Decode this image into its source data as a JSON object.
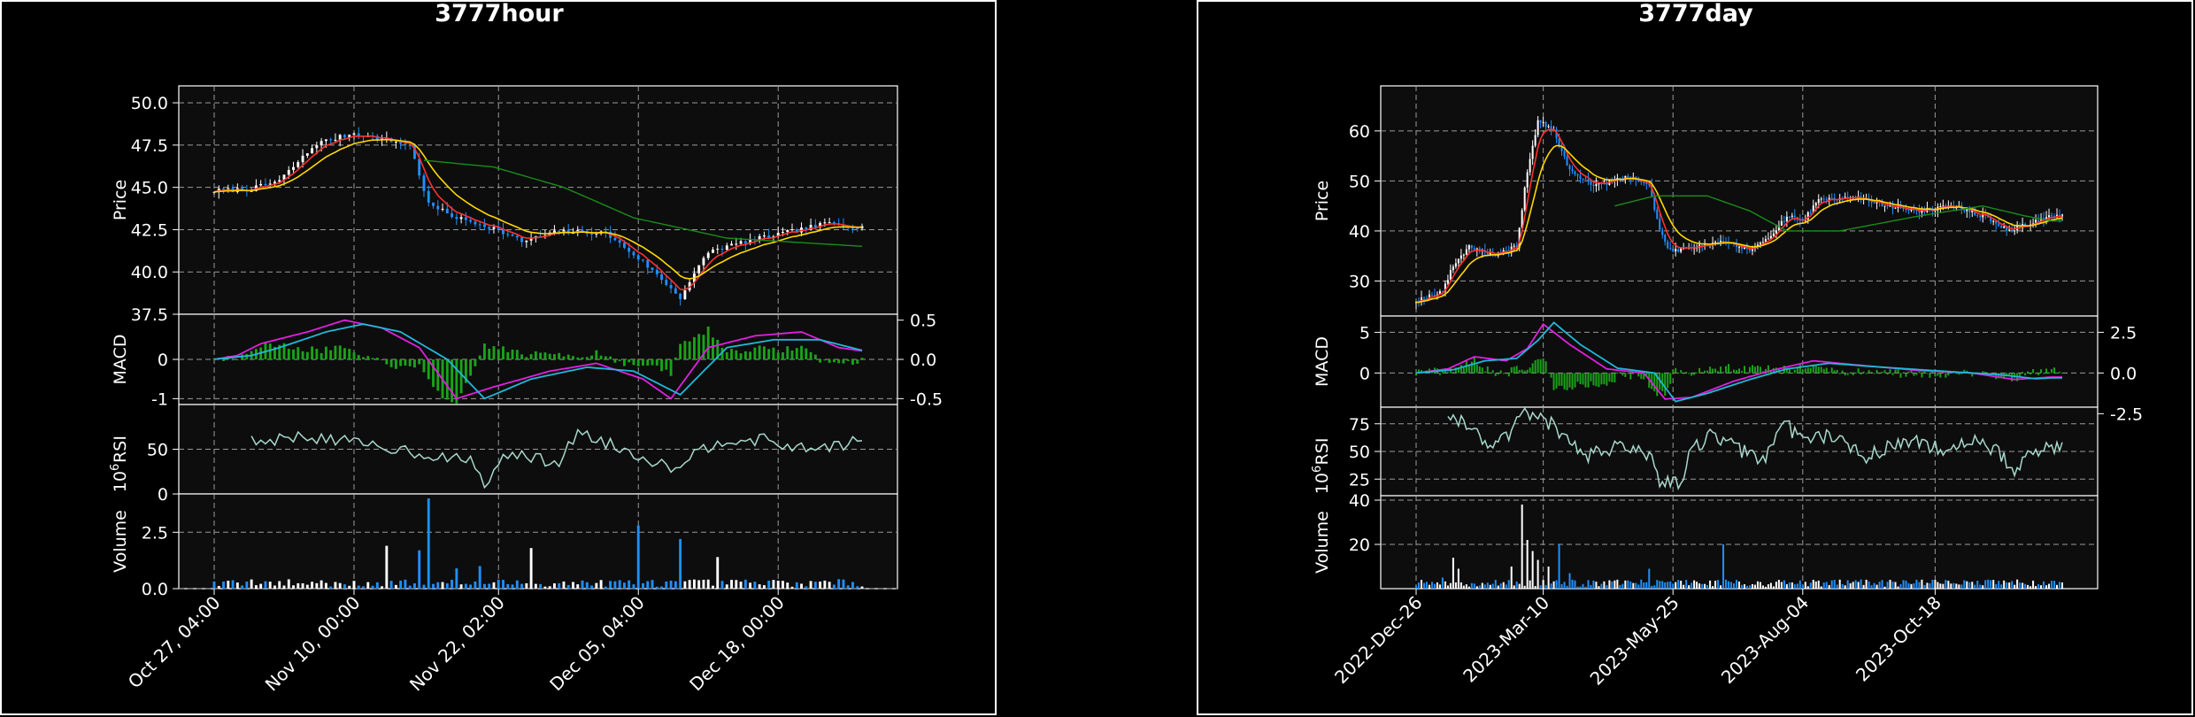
{
  "colors": {
    "background": "#000000",
    "plot_face": "#0d0d0d",
    "grid": "#9a9a9a",
    "axis": "#ffffff",
    "text": "#ffffff",
    "candle_up": "#ffffff",
    "candle_down": "#1e90ff",
    "ma_fast": "#ff3030",
    "ma_mid": "#ffd700",
    "ma_slow": "#1a8c1a",
    "macd_line": "#e020e0",
    "signal_line": "#20b8d8",
    "macd_hist": "#1aa31a",
    "rsi_line": "#a8d8cc"
  },
  "chart_data": [
    {
      "type": "candlestick",
      "title": "3777hour",
      "x_tick_labels": [
        "Oct 27, 04:00",
        "Nov 10, 00:00",
        "Nov 22, 02:00",
        "Dec 05, 04:00",
        "Dec 18, 00:00"
      ],
      "bar_count": 140,
      "x_tick_index": [
        0,
        30,
        61,
        91,
        121
      ],
      "price_panel": {
        "ylabel": "Price",
        "ylim": [
          37.5,
          51
        ],
        "yticks": [
          "37.5",
          "40.0",
          "42.5",
          "45.0",
          "47.5",
          "50.0"
        ],
        "ytick_values": [
          37.5,
          40,
          42.5,
          45,
          47.5,
          50
        ],
        "close_keypoints": [
          [
            0,
            44.8
          ],
          [
            8,
            44.9
          ],
          [
            14,
            45.4
          ],
          [
            22,
            47.6
          ],
          [
            30,
            48.2
          ],
          [
            42,
            47.5
          ],
          [
            46,
            44.0
          ],
          [
            52,
            43.2
          ],
          [
            60,
            42.6
          ],
          [
            66,
            41.8
          ],
          [
            74,
            42.4
          ],
          [
            84,
            42.3
          ],
          [
            92,
            40.6
          ],
          [
            100,
            38.5
          ],
          [
            106,
            41.2
          ],
          [
            114,
            41.8
          ],
          [
            124,
            42.4
          ],
          [
            132,
            42.9
          ],
          [
            140,
            42.6
          ]
        ],
        "ma_slow_keypoints": [
          [
            45,
            46.6
          ],
          [
            60,
            46.2
          ],
          [
            75,
            45.0
          ],
          [
            90,
            43.2
          ],
          [
            110,
            42.0
          ],
          [
            140,
            41.5
          ]
        ]
      },
      "macd_panel": {
        "ylabel": "MACD",
        "left_ylim": [
          -1.15,
          1.15
        ],
        "left_yticks": [
          "-1",
          "0"
        ],
        "left_ytick_values": [
          -1,
          0
        ],
        "right_yticks": [
          "0.5",
          "0.0",
          "-0.5"
        ],
        "right_ytick_values": [
          0.5,
          0,
          -0.5
        ],
        "macd_keypoints": [
          [
            0,
            0.0
          ],
          [
            5,
            0.1
          ],
          [
            10,
            0.4
          ],
          [
            20,
            0.7
          ],
          [
            28,
            1.0
          ],
          [
            36,
            0.8
          ],
          [
            44,
            0.3
          ],
          [
            52,
            -1.0
          ],
          [
            60,
            -0.7
          ],
          [
            72,
            -0.3
          ],
          [
            82,
            -0.1
          ],
          [
            92,
            -0.5
          ],
          [
            98,
            -1.0
          ],
          [
            106,
            0.3
          ],
          [
            116,
            0.6
          ],
          [
            126,
            0.7
          ],
          [
            134,
            0.3
          ],
          [
            140,
            0.2
          ]
        ],
        "signal_keypoints": [
          [
            0,
            0.0
          ],
          [
            8,
            0.1
          ],
          [
            14,
            0.3
          ],
          [
            24,
            0.7
          ],
          [
            32,
            0.9
          ],
          [
            40,
            0.7
          ],
          [
            50,
            0.0
          ],
          [
            58,
            -1.0
          ],
          [
            68,
            -0.5
          ],
          [
            80,
            -0.2
          ],
          [
            90,
            -0.3
          ],
          [
            100,
            -0.9
          ],
          [
            110,
            0.3
          ],
          [
            120,
            0.5
          ],
          [
            130,
            0.5
          ],
          [
            140,
            0.2
          ]
        ]
      },
      "rsi_panel": {
        "ylabel": "RSI",
        "ylim": [
          0,
          100
        ],
        "yticks": [
          "0",
          "50"
        ],
        "ytick_values": [
          0,
          50
        ],
        "rsi_keypoints": [
          [
            8,
            58
          ],
          [
            20,
            65
          ],
          [
            32,
            55
          ],
          [
            40,
            50
          ],
          [
            48,
            42
          ],
          [
            56,
            35
          ],
          [
            58,
            5
          ],
          [
            62,
            45
          ],
          [
            74,
            35
          ],
          [
            78,
            70
          ],
          [
            90,
            45
          ],
          [
            98,
            30
          ],
          [
            104,
            48
          ],
          [
            110,
            62
          ],
          [
            118,
            60
          ],
          [
            126,
            50
          ],
          [
            134,
            55
          ],
          [
            140,
            60
          ]
        ]
      },
      "volume_panel": {
        "ylabel": "Volume",
        "multiplier": "10",
        "multiplier_exp": "6",
        "ylim": [
          0,
          4.2
        ],
        "yticks": [
          "0.0",
          "2.5"
        ],
        "ytick_values": [
          0,
          2.5
        ],
        "spikes": [
          [
            37,
            1.9
          ],
          [
            44,
            1.7
          ],
          [
            46,
            4.0
          ],
          [
            52,
            0.9
          ],
          [
            57,
            1.0
          ],
          [
            68,
            1.8
          ],
          [
            91,
            2.8
          ],
          [
            100,
            2.2
          ],
          [
            108,
            1.4
          ]
        ]
      }
    },
    {
      "type": "candlestick",
      "title": "3777day",
      "x_tick_labels": [
        "2022-Dec-26",
        "2023-Mar-10",
        "2023-May-25",
        "2023-Aug-04",
        "2023-Oct-18"
      ],
      "bar_count": 245,
      "x_tick_index": [
        0,
        48,
        97,
        146,
        196
      ],
      "price_panel": {
        "ylabel": "Price",
        "ylim": [
          23,
          69
        ],
        "yticks": [
          "30",
          "40",
          "50",
          "60"
        ],
        "ytick_values": [
          30,
          40,
          50,
          60
        ],
        "close_keypoints": [
          [
            0,
            26
          ],
          [
            10,
            28
          ],
          [
            14,
            33
          ],
          [
            20,
            37
          ],
          [
            30,
            35
          ],
          [
            38,
            37
          ],
          [
            42,
            52
          ],
          [
            46,
            62
          ],
          [
            52,
            60
          ],
          [
            58,
            52
          ],
          [
            68,
            49
          ],
          [
            80,
            51
          ],
          [
            88,
            49
          ],
          [
            92,
            40
          ],
          [
            96,
            36
          ],
          [
            106,
            37
          ],
          [
            116,
            38
          ],
          [
            126,
            36
          ],
          [
            132,
            38
          ],
          [
            140,
            43
          ],
          [
            146,
            42
          ],
          [
            152,
            46
          ],
          [
            164,
            47
          ],
          [
            178,
            45
          ],
          [
            190,
            44
          ],
          [
            204,
            45
          ],
          [
            214,
            43
          ],
          [
            224,
            40
          ],
          [
            234,
            42
          ],
          [
            240,
            43
          ]
        ],
        "ma_slow_keypoints": [
          [
            75,
            45
          ],
          [
            90,
            47
          ],
          [
            110,
            47
          ],
          [
            126,
            44
          ],
          [
            140,
            40
          ],
          [
            160,
            40
          ],
          [
            190,
            43
          ],
          [
            214,
            45
          ],
          [
            230,
            43
          ],
          [
            240,
            42
          ]
        ]
      },
      "macd_panel": {
        "ylabel": "MACD",
        "left_ylim": [
          -4.2,
          7
        ],
        "left_yticks": [
          "0",
          "5"
        ],
        "left_ytick_values": [
          0,
          5
        ],
        "right_yticks": [
          "2.5",
          "0.0",
          "-2.5"
        ],
        "right_ytick_values": [
          2.5,
          0,
          -2.5
        ],
        "macd_keypoints": [
          [
            0,
            0
          ],
          [
            12,
            0.5
          ],
          [
            22,
            2.0
          ],
          [
            34,
            1.5
          ],
          [
            42,
            3.0
          ],
          [
            48,
            6.0
          ],
          [
            58,
            3.5
          ],
          [
            72,
            0.5
          ],
          [
            86,
            0.0
          ],
          [
            94,
            -3.2
          ],
          [
            104,
            -3.0
          ],
          [
            120,
            -1.0
          ],
          [
            134,
            0.3
          ],
          [
            150,
            1.5
          ],
          [
            166,
            1.0
          ],
          [
            190,
            0.3
          ],
          [
            210,
            0.0
          ],
          [
            226,
            -0.8
          ],
          [
            240,
            -0.5
          ]
        ],
        "signal_keypoints": [
          [
            0,
            0
          ],
          [
            14,
            0.4
          ],
          [
            26,
            1.5
          ],
          [
            38,
            1.8
          ],
          [
            46,
            4.0
          ],
          [
            52,
            6.2
          ],
          [
            62,
            3.5
          ],
          [
            76,
            0.6
          ],
          [
            90,
            0.0
          ],
          [
            98,
            -3.5
          ],
          [
            110,
            -2.5
          ],
          [
            126,
            -0.8
          ],
          [
            140,
            0.5
          ],
          [
            156,
            1.2
          ],
          [
            172,
            0.8
          ],
          [
            200,
            0.2
          ],
          [
            220,
            -0.2
          ],
          [
            234,
            -0.7
          ],
          [
            240,
            -0.6
          ]
        ]
      },
      "rsi_panel": {
        "ylabel": "RSI",
        "ylim": [
          10,
          90
        ],
        "yticks": [
          "25",
          "50",
          "75"
        ],
        "ytick_values": [
          25,
          50,
          75
        ],
        "rsi_keypoints": [
          [
            12,
            86
          ],
          [
            20,
            70
          ],
          [
            28,
            58
          ],
          [
            34,
            62
          ],
          [
            40,
            82
          ],
          [
            46,
            86
          ],
          [
            52,
            72
          ],
          [
            58,
            56
          ],
          [
            64,
            45
          ],
          [
            76,
            55
          ],
          [
            88,
            45
          ],
          [
            92,
            25
          ],
          [
            100,
            20
          ],
          [
            104,
            52
          ],
          [
            112,
            65
          ],
          [
            124,
            50
          ],
          [
            132,
            42
          ],
          [
            138,
            78
          ],
          [
            146,
            60
          ],
          [
            156,
            65
          ],
          [
            170,
            45
          ],
          [
            180,
            55
          ],
          [
            190,
            60
          ],
          [
            200,
            50
          ],
          [
            210,
            60
          ],
          [
            220,
            50
          ],
          [
            226,
            30
          ],
          [
            232,
            48
          ],
          [
            240,
            55
          ]
        ]
      },
      "volume_panel": {
        "ylabel": "Volume",
        "multiplier": "10",
        "multiplier_exp": "6",
        "ylim": [
          0,
          42
        ],
        "yticks": [
          "20",
          "40"
        ],
        "ytick_values": [
          20,
          40
        ],
        "spikes": [
          [
            10,
            5
          ],
          [
            14,
            14
          ],
          [
            16,
            9
          ],
          [
            36,
            10
          ],
          [
            40,
            38
          ],
          [
            42,
            22
          ],
          [
            44,
            17
          ],
          [
            46,
            13
          ],
          [
            50,
            10
          ],
          [
            54,
            20
          ],
          [
            58,
            7
          ],
          [
            88,
            9
          ],
          [
            102,
            4
          ],
          [
            116,
            20
          ],
          [
            130,
            3
          ],
          [
            150,
            4
          ]
        ]
      }
    }
  ]
}
